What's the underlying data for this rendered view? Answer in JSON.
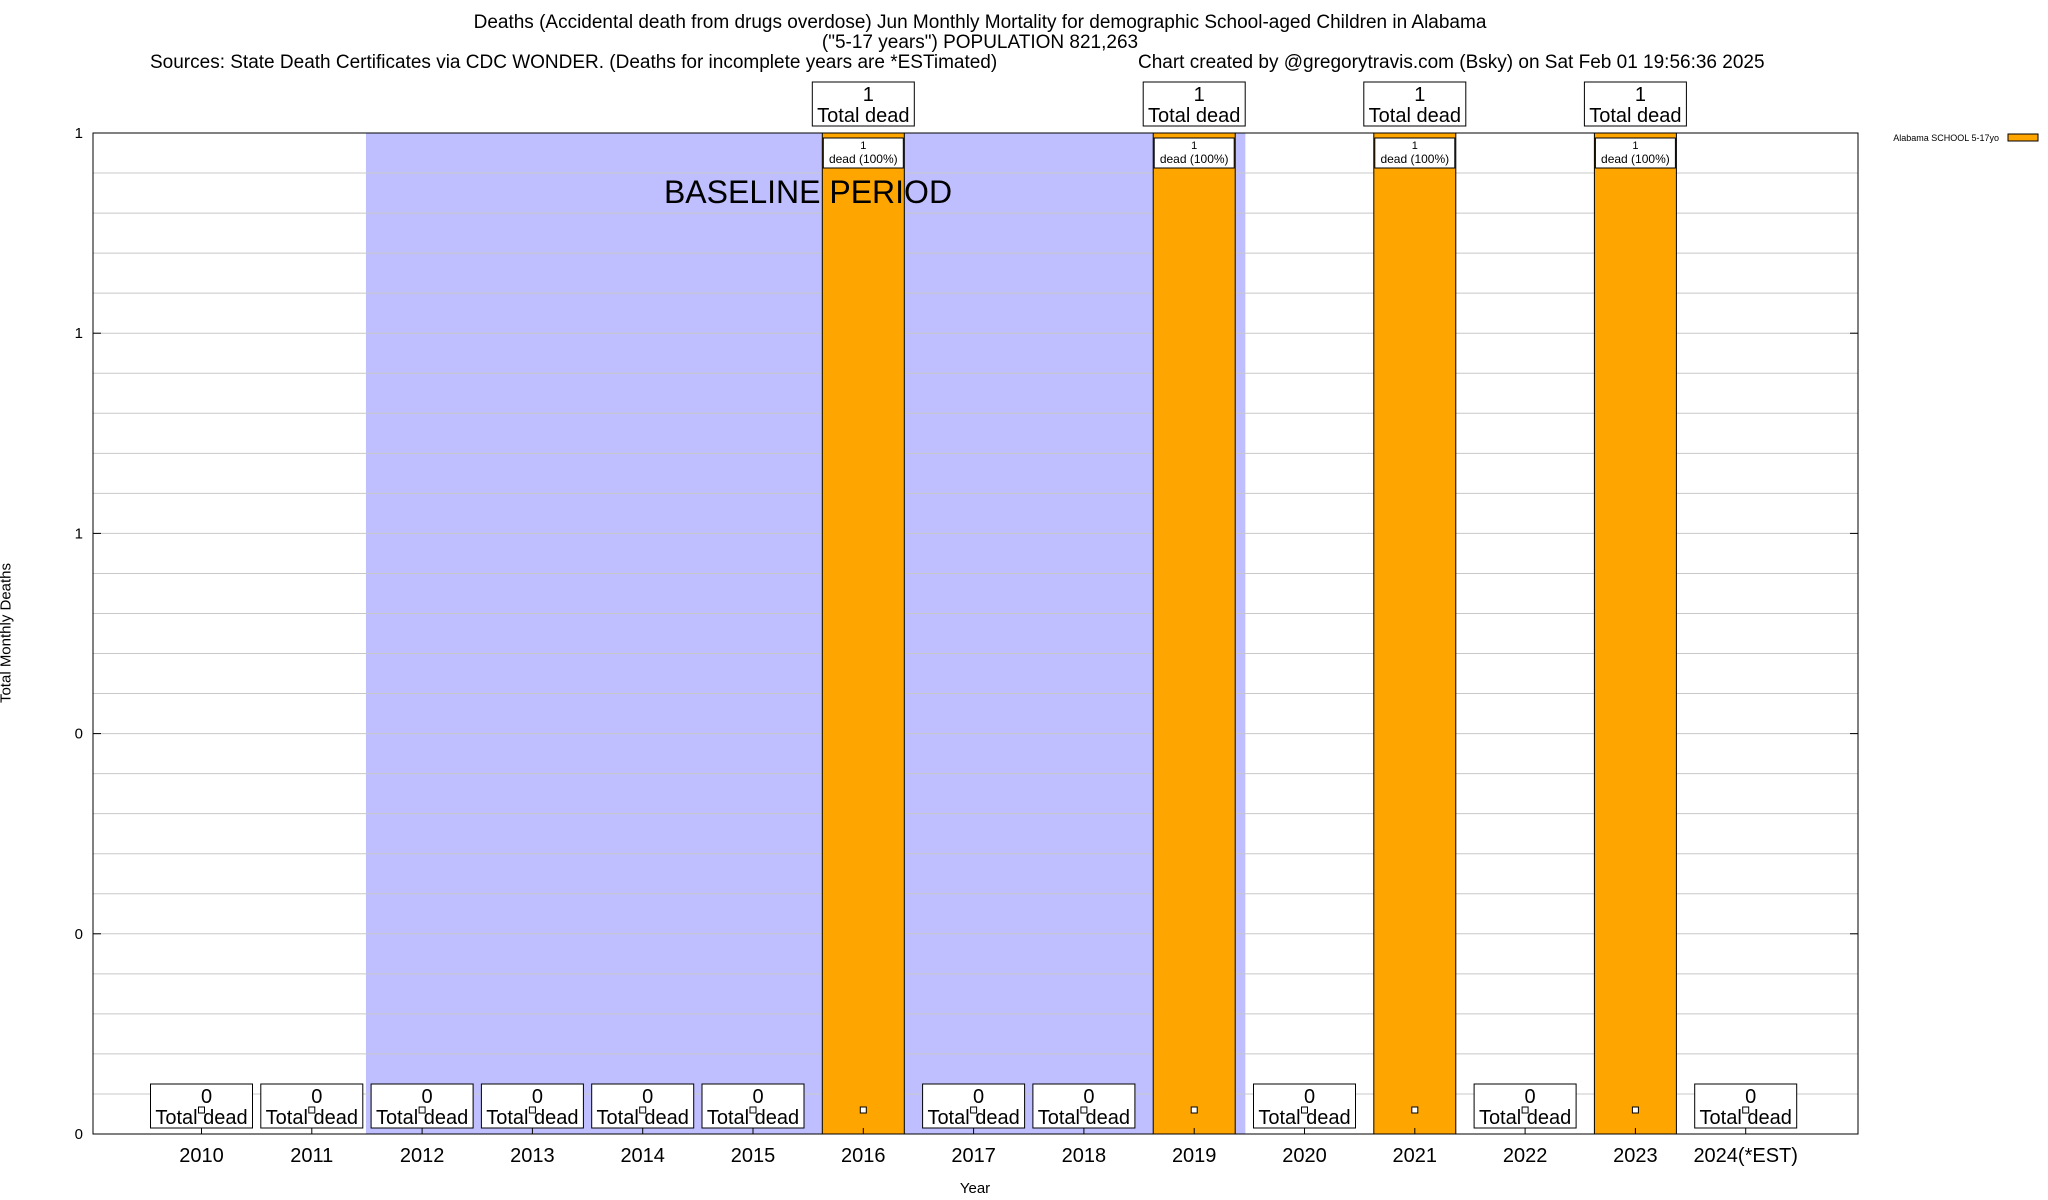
{
  "header": {
    "title_line1": "Deaths (Accidental death from drugs overdose) Jun Monthly Mortality for demographic School-aged Children in Alabama",
    "title_line2": "(\"5-17 years\") POPULATION 821,263",
    "sources": "Sources: State Death Certificates via CDC WONDER. (Deaths for incomplete years are *ESTimated)",
    "credit": "Chart created by @gregorytravis.com (Bsky) on Sat Feb 01 19:56:36 2025"
  },
  "chart_data": {
    "type": "bar",
    "title": "Deaths (Accidental death from drugs overdose) Jun Monthly Mortality for demographic School-aged Children in Alabama",
    "xlabel": "Year",
    "ylabel": "Total Monthly Deaths",
    "ylim": [
      0,
      1
    ],
    "y_tick_labels": [
      "0",
      "0",
      "0",
      "1",
      "1",
      "1"
    ],
    "categories": [
      "2010",
      "2011",
      "2012",
      "2013",
      "2014",
      "2015",
      "2016",
      "2017",
      "2018",
      "2019",
      "2020",
      "2021",
      "2022",
      "2023",
      "2024(*EST)"
    ],
    "series": [
      {
        "name": "Alabama SCHOOL 5-17yo",
        "color": "#FFA500",
        "values": [
          0,
          0,
          0,
          0,
          0,
          0,
          1,
          0,
          0,
          1,
          0,
          1,
          0,
          1,
          0
        ]
      }
    ],
    "total_labels": [
      "0",
      "0",
      "0",
      "0",
      "0",
      "0",
      "1",
      "0",
      "0",
      "1",
      "0",
      "1",
      "0",
      "1",
      "0"
    ],
    "total_suffix": "Total dead",
    "bar_labels": [
      "",
      "",
      "",
      "",
      "",
      "",
      "1\ndead (100%)",
      "",
      "",
      "1\ndead (100%)",
      "",
      "1\ndead (100%)",
      "",
      "1\ndead (100%)",
      ""
    ],
    "baseline_period": {
      "label": "BASELINE PERIOD",
      "from": "2012",
      "to": "2019",
      "color": "#BFBFFF"
    },
    "grid": true,
    "legend_position": "top-right"
  }
}
